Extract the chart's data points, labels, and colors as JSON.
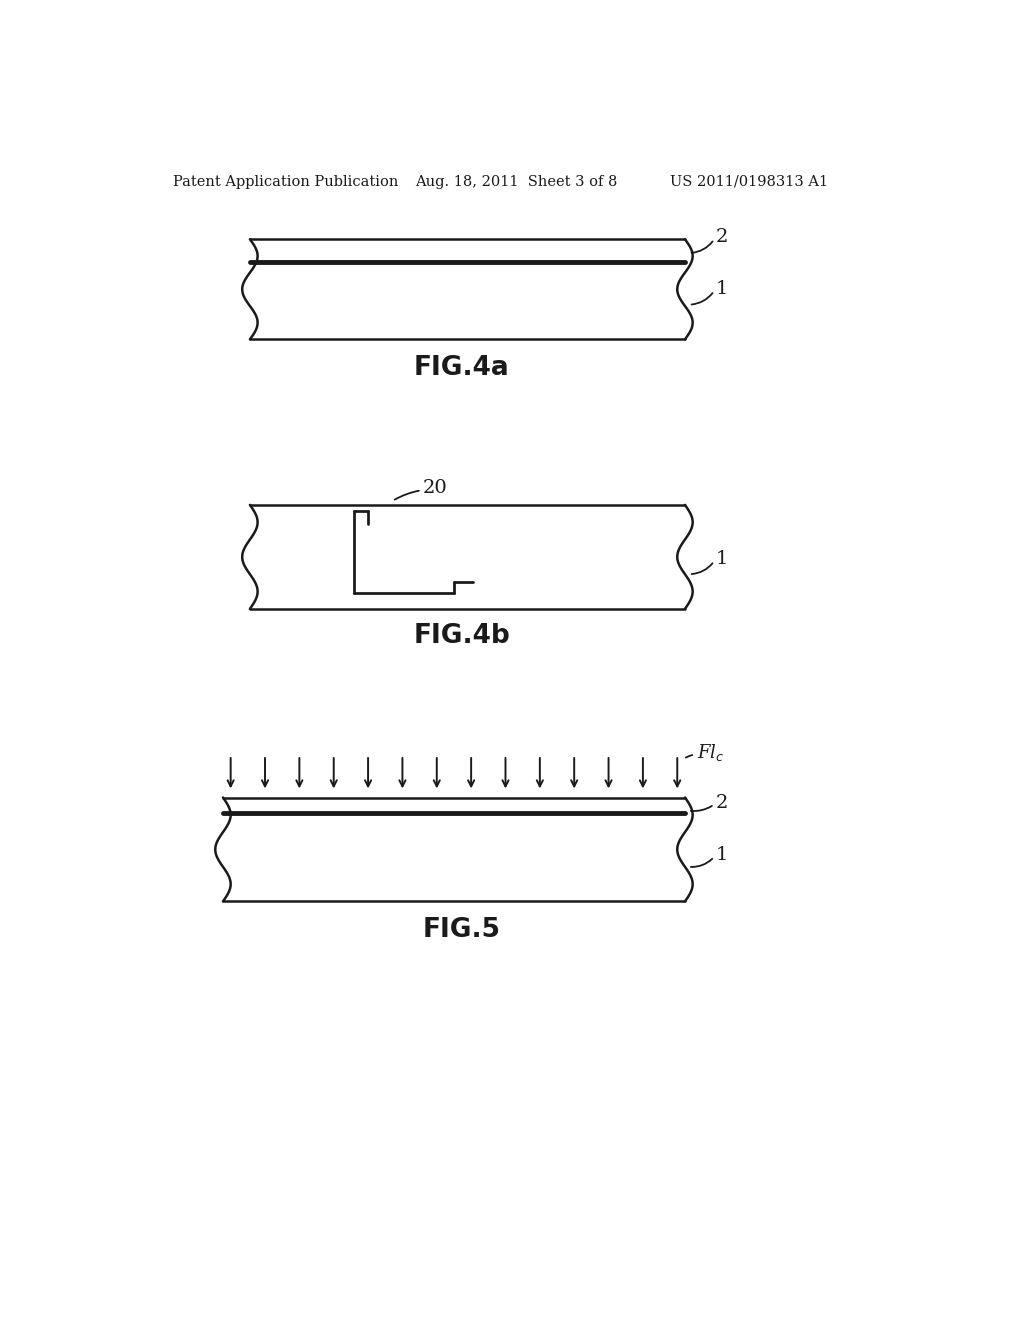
{
  "bg_color": "#ffffff",
  "line_color": "#1a1a1a",
  "header_left": "Patent Application Publication",
  "header_mid": "Aug. 18, 2011  Sheet 3 of 8",
  "header_right": "US 2011/0198313 A1",
  "fig4a_label": "FIG.4a",
  "fig4b_label": "FIG.4b",
  "fig5_label": "FIG.5",
  "lw_main": 1.8,
  "lw_thin": 3.5,
  "wave_amp": 10,
  "wave_freq": 3.0,
  "wave_pts": 80
}
